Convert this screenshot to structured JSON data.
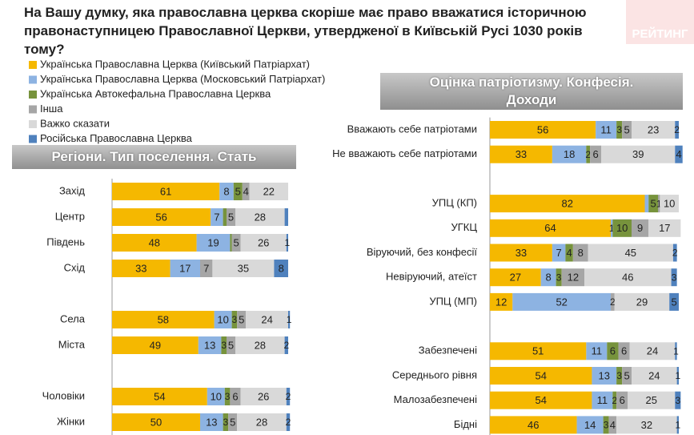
{
  "title": "На Вашу думку, яка православна церква скоріше має право вважатися історичною правонаступницею Православної Церкви, утвердженої в Київській Русі 1030 років тому?",
  "logo": "РЕЙТИНГ",
  "chart_data": [
    {
      "type": "bar",
      "orientation": "horizontal",
      "stacked": true,
      "title": "Регіони. Тип поселення. Стать",
      "xlim": [
        0,
        100
      ],
      "categories": [
        "Захід",
        "Центр",
        "Південь",
        "Схід",
        null,
        "Села",
        "Міста",
        null,
        "Чоловіки",
        "Жінки"
      ],
      "series": [
        {
          "name": "Українська Православна Церква (Київський Патріархат)",
          "color": "#f5b800",
          "values": [
            61,
            56,
            48,
            33,
            null,
            58,
            49,
            null,
            54,
            50
          ]
        },
        {
          "name": "Українська Православна Церква (Московський Патріархат)",
          "color": "#8db3e2",
          "values": [
            8,
            7,
            19,
            17,
            null,
            10,
            13,
            null,
            10,
            13
          ]
        },
        {
          "name": "Українська Автокефальна Православна Церква",
          "color": "#77933c",
          "values": [
            5,
            2,
            1,
            null,
            null,
            3,
            3,
            null,
            3,
            3
          ],
          "value_labels": [
            "5",
            null,
            null,
            null,
            null,
            "3",
            "3",
            null,
            "3",
            "3"
          ]
        },
        {
          "name": "Інша",
          "color": "#a6a6a6",
          "values": [
            4,
            5,
            5,
            7,
            null,
            5,
            5,
            null,
            6,
            5
          ]
        },
        {
          "name": "Важко сказати",
          "color": "#d9d9d9",
          "values": [
            22,
            28,
            26,
            35,
            null,
            24,
            28,
            null,
            26,
            28
          ]
        },
        {
          "name": "Російська Православна Церква",
          "color": "#4f81bd",
          "values": [
            null,
            2,
            1,
            8,
            null,
            1,
            2,
            null,
            2,
            2
          ],
          "value_labels": [
            null,
            null,
            "1",
            "8",
            null,
            "1",
            "2",
            null,
            "2",
            "2"
          ]
        }
      ]
    },
    {
      "type": "bar",
      "orientation": "horizontal",
      "stacked": true,
      "title": "Оцінка патріотизму. Конфесія. Доходи",
      "xlim": [
        0,
        100
      ],
      "categories": [
        "Вважають себе патріотами",
        "Не вважають себе патріотами",
        null,
        "УПЦ (КП)",
        "УГКЦ",
        "Віруючий, без конфесії",
        "Невіруючий, атеїст",
        "УПЦ (МП)",
        null,
        "Забезпечені",
        "Середнього рівня",
        "Малозабезпечені",
        "Бідні"
      ],
      "series": [
        {
          "color": "#f5b800",
          "values": [
            56,
            33,
            null,
            82,
            64,
            33,
            27,
            12,
            null,
            51,
            54,
            54,
            46
          ]
        },
        {
          "color": "#8db3e2",
          "values": [
            11,
            18,
            null,
            2,
            1,
            7,
            8,
            52,
            null,
            11,
            13,
            11,
            14
          ],
          "value_labels": [
            "11",
            "18",
            null,
            null,
            "1",
            "7",
            "8",
            "52",
            null,
            "11",
            "13",
            "11",
            "14"
          ]
        },
        {
          "color": "#77933c",
          "values": [
            3,
            2,
            null,
            5,
            10,
            4,
            3,
            null,
            null,
            6,
            3,
            2,
            3
          ]
        },
        {
          "color": "#a6a6a6",
          "values": [
            5,
            6,
            null,
            1,
            9,
            8,
            12,
            2,
            null,
            6,
            5,
            6,
            4
          ]
        },
        {
          "color": "#d9d9d9",
          "values": [
            23,
            39,
            null,
            10,
            17,
            45,
            46,
            29,
            null,
            24,
            24,
            25,
            32
          ]
        },
        {
          "color": "#4f81bd",
          "values": [
            2,
            4,
            null,
            null,
            null,
            2,
            3,
            5,
            null,
            1,
            1,
            3,
            1
          ]
        }
      ]
    }
  ]
}
